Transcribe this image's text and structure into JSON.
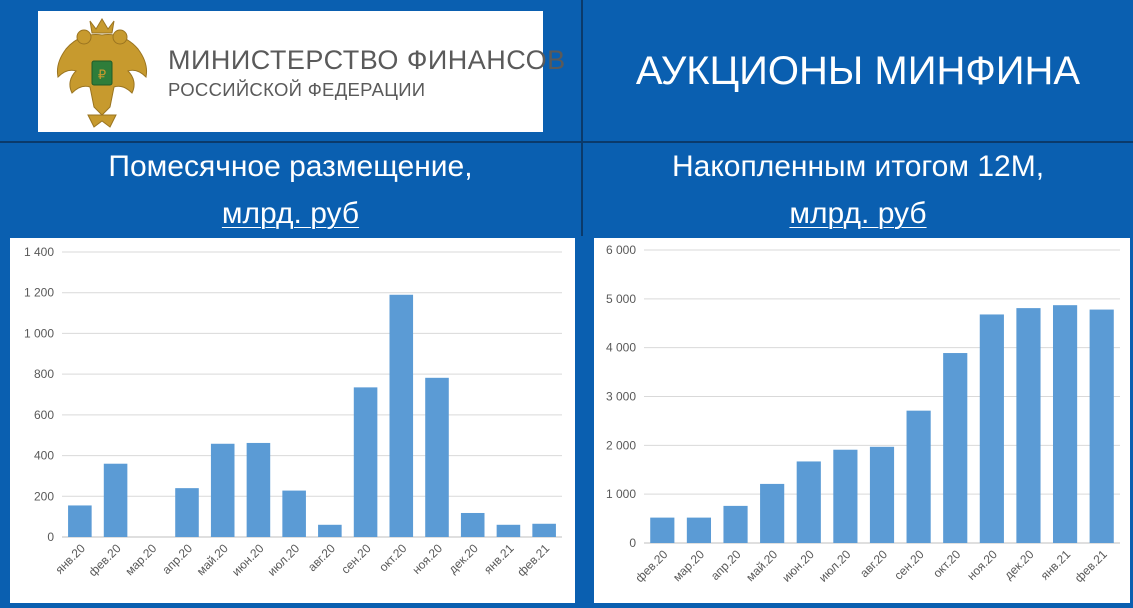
{
  "header": {
    "ministry_line1": "МИНИСТЕРСТВО ФИНАНСОВ",
    "ministry_line2": "РОССИЙСКОЙ ФЕДЕРАЦИИ",
    "emblem_icon": "double-headed-eagle-icon",
    "title": "АУКЦИОНЫ МИНФИНА"
  },
  "left_panel": {
    "title": "Помесячное размещение,",
    "unit": "млрд. руб"
  },
  "right_panel": {
    "title": "Накопленным итогом 12М,",
    "unit": "млрд. руб"
  },
  "colors": {
    "background": "#0a5fb0",
    "bar": "#5b9bd5",
    "grid": "#d9d9d9"
  },
  "chart_data": [
    {
      "type": "bar",
      "categories": [
        "янв.20",
        "фев.20",
        "мар.20",
        "апр.20",
        "май.20",
        "июн.20",
        "июл.20",
        "авг.20",
        "сен.20",
        "окт.20",
        "ноя.20",
        "дек.20",
        "янв.21",
        "фев.21"
      ],
      "values": [
        155,
        360,
        0,
        240,
        458,
        462,
        228,
        60,
        735,
        1190,
        782,
        118,
        60,
        65
      ],
      "ylim": [
        0,
        1400
      ],
      "yticks": [
        0,
        200,
        400,
        600,
        800,
        1000,
        1200,
        1400
      ],
      "ytick_labels": [
        "0",
        "200",
        "400",
        "600",
        "800",
        "1 000",
        "1 200",
        "1 400"
      ],
      "grid": true,
      "xlabel": "",
      "ylabel": ""
    },
    {
      "type": "bar",
      "categories": [
        "фев.20",
        "мар.20",
        "апр.20",
        "май.20",
        "июн.20",
        "июл.20",
        "авг.20",
        "сен.20",
        "окт.20",
        "ноя.20",
        "дек.20",
        "янв.21",
        "фев.21"
      ],
      "values": [
        520,
        520,
        760,
        1210,
        1670,
        1910,
        1970,
        2710,
        3890,
        4680,
        4810,
        4870,
        4780
      ],
      "ylim": [
        0,
        6000
      ],
      "yticks": [
        0,
        1000,
        2000,
        3000,
        4000,
        5000,
        6000
      ],
      "ytick_labels": [
        "0",
        "1 000",
        "2 000",
        "3 000",
        "4 000",
        "5 000",
        "6 000"
      ],
      "grid": true,
      "xlabel": "",
      "ylabel": ""
    }
  ]
}
